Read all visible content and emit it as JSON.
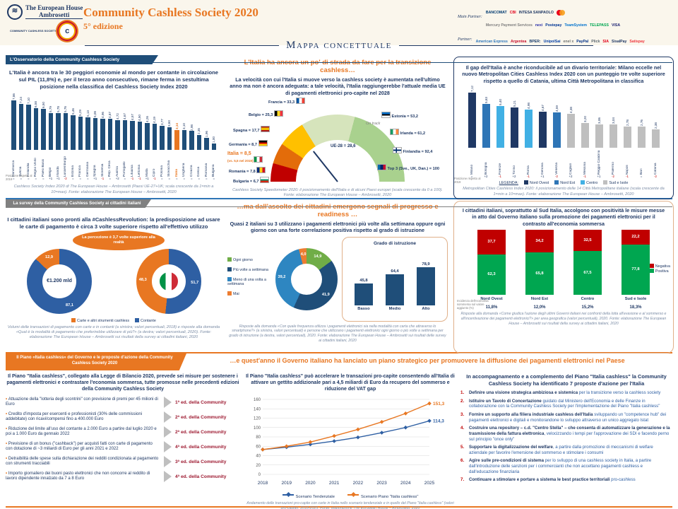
{
  "header": {
    "org_line1": "The European House",
    "org_line2": "Ambrosetti",
    "ccs_logo_text": "COMMUNITY CASHLESS SOCIETY",
    "title": "Community Cashless Society 2020",
    "edition": "5° edizione",
    "main_partner_label": "Main Partner:",
    "partner_label": "Partner:",
    "main_partners": [
      {
        "name": "BANCOMAT",
        "color": "#003A70"
      },
      {
        "name": "CBI",
        "color": "#E2001A"
      },
      {
        "name": "INTESA SANPAOLO",
        "color": "#1F3864"
      },
      {
        "name": "Mastercard",
        "color": "#1F3864"
      },
      {
        "name": "Mercury Payment Services",
        "color": "#7F7F7F"
      },
      {
        "name": "nexi",
        "color": "#2D32AA"
      },
      {
        "name": "Postepay",
        "color": "#003595"
      },
      {
        "name": "TeamSystem",
        "color": "#0072CE"
      },
      {
        "name": "TELEPASS",
        "color": "#00A651"
      },
      {
        "name": "VISA",
        "color": "#1A1F71"
      }
    ],
    "partners": [
      {
        "name": "American Express",
        "color": "#2E77BC"
      },
      {
        "name": "Argentea",
        "color": "#C8102E"
      },
      {
        "name": "BPER:",
        "color": "#1A3E6E"
      },
      {
        "name": "UnipolSai",
        "color": "#003DA5"
      },
      {
        "name": "enel x",
        "color": "#6F7271"
      },
      {
        "name": "PayPal",
        "color": "#003087"
      },
      {
        "name": "Plick",
        "color": "#5B6770"
      },
      {
        "name": "SIA",
        "color": "#E2001A"
      },
      {
        "name": "SisalPay",
        "color": "#1F3864"
      },
      {
        "name": "Satispay",
        "color": "#EF373E"
      }
    ]
  },
  "map_title": "Mappa concettuale",
  "tabs": {
    "t1": "L'Osservatorio della Community Cashless Society",
    "t2": "La survey della Community Cashless Society ai cittadini italiani",
    "t3": "Il Piano «Italia cashless» del Governo e le proposte d'azione della Community Cashless Society 2020"
  },
  "panels": {
    "p11": {
      "headline": "L'Italia è ancora tra le 30 peggiori economie al mondo per contante in circolazione sul PIL (11,8%) e, per il terzo anno consecutivo, rimane ferma in sestultima posizione nella classifica del Cashless Society Index 2020",
      "caption": "Cashless Society Index 2020 di The European House – Ambrosetti (Paesi UE-27+UK; scala crescente da 1=min a 10=max). Fonte: elaborazione The European House – Ambrosetti, 2020"
    },
    "p12": {
      "title": "L'Italia ha ancora un po' di strada da fare per la transizione cashless…",
      "headline": "La velocità con cui l'Italia si muove verso la cashless society è aumentata nell'ultimo anno ma non è ancora adeguata: a tale velocità, l'Italia raggiungerebbe l'attuale media UE di pagamenti elettronici pro-capite nel 2028",
      "caption": "Cashless Society Speedometer 2020: il posizionamento dell'Italia e di alcuni Paesi europei (scala crescente da 0 a 100). Fonte: elaborazione The European House – Ambrosetti, 2020"
    },
    "p13": {
      "headline": "Il gap dell'Italia è anche riconducibile ad un divario territoriale: Milano eccelle nel nuovo Metropolitan Cities Cashless Index 2020 con un punteggio tre volte superiore rispetto a quello di Catania, ultima Città Metropolitana in classifica",
      "caption": "Metropolitan Cities Cashless Index 2020: il posizionamento delle 14 Città Metropolitane italiane (scala crescente da 1=min a 10=max). Fonte: elaborazione The European House – Ambrosetti, 2020"
    },
    "p21": {
      "headline": "I cittadini italiani sono pronti alla #CashlessRevolution: la predisposizione ad usare le carte di pagamento è circa 3 volte superiore rispetto all'effettivo utilizzo",
      "caption": "Volumi delle transazioni di pagamento con carte e in contanti (a sinistra; valori percentuali, 2018) e risposte alla domanda «Qual è la modalità di pagamento che preferirebbe utilizzare di più?» (a destra; valori percentuali, 2020). Fonte: elaborazione The European House – Ambrosetti sui risultati della survey ai cittadini italiani, 2020"
    },
    "p22": {
      "title": "…ma dall'ascolto dei cittadini emergono segnali di progresso e readiness …",
      "headline": "Quasi 2 italiani su 3 utilizzano i pagamenti elettronici più volte alla settimana oppure ogni giorno con una forte correlazione positiva rispetto al grado di istruzione",
      "caption": "Risposte alla domanda «Con quale frequenza utilizza i pagamenti elettronici sia nella modalità con carta che attraverso lo smartphone?» (a sinistra, valori percentuali) e persone che utilizzano i pagamenti elettronici ogni giorno o più volte a settimana per grado di istruzione (a destra, valori percentuali), 2020. Fonte: elaborazione The European House – Ambrosetti sui risultati delle survey ai cittadini italiani, 2020"
    },
    "p23": {
      "headline": "I cittadini italiani, soprattutto al Sud Italia, accolgono con positività le misure messe in atto dal Governo italiano sulla promozione dei pagamenti elettronici per il contrasto all'economia sommersa",
      "caption": "Risposte alla domanda «Come giudica l'azione degli ultimi Governi italiani nei confronti della lotta all'evasione e al sommerso e all'incentivazione dei pagamenti elettronici?» per area geografica (valori percentuali), 2020. Fonte: elaborazione The European House – Ambrosetti sui risultati della survey ai cittadini italiani, 2020"
    },
    "p3": {
      "title": "…e quest'anno il Governo italiano ha lanciato un piano strategico per promuovere la diffusione dei pagamenti elettronici nel Paese",
      "left_headline": "Il Piano \"Italia cashless\", collegato alla Legge di Bilancio 2020, prevede sei misure per sostenere i pagamenti elettronici e contrastare l'economia sommersa, tutte promosse nelle precedenti edizioni della Community Cashless Society",
      "measures": [
        {
          "text": "Attuazione della \"lotteria degli scontrini\" con previsione di premi per 45 milioni di Euro",
          "edition": "1ª ed. della Community"
        },
        {
          "text": "Credito d'imposta per esercenti e professionisti (30% delle commissioni addebitate) con ricavi/compensi fino a 400.000 Euro",
          "edition": "2ª ed. della Community"
        },
        {
          "text": "Riduzione del limite all'uso del contante a 2.000 Euro a partire dal luglio 2020 e poi a 1.000 Euro da gennaio 2022",
          "edition": "2ª ed. della Community"
        },
        {
          "text": "Previsione di un bonus (\"cashback\") per acquisti fatti con carte di pagamento con dotazione di ~3 miliardi di Euro per gli anni 2021 e 2022",
          "edition": "4ª ed. della Community"
        },
        {
          "text": "Detraibilità delle spese sulla dichiarazione dei redditi condizionata al pagamento con strumenti tracciabili",
          "edition": "3ª ed. della Community"
        },
        {
          "text": "Importo giornaliero dei buoni pasto elettronici che non concorre al reddito di lavoro dipendente innalzato da 7 a 8 Euro",
          "edition": "4ª ed. della Community"
        }
      ],
      "mid_headline": "Il Piano \"Italia cashless\" può accelerare le transazioni pro-capite consentendo all'Italia di attivare un gettito addizionale pari a 4,5 miliardi di Euro da recupero del sommerso e riduzione del VAT gap",
      "mid_caption": "Andamento delle transazioni pro-capite con carte in Italia nello scenario tendenziale e in quello del Piano \"Italia cashless\" (valori pro-capite), 2018-2025. Fonte: elaborazione The European House – Ambrosetti, 2020",
      "right_heading": "In accompagnamento e a complemento del Piano \"Italia cashless\" la Community Cashless Society ha identificato 7 proposte d'azione per l'Italia",
      "proposals": [
        {
          "n": "1.",
          "lead": "Definire una visione strategica ambiziosa e sistemica",
          "rest": " per la transizione verso la cashless society"
        },
        {
          "n": "2.",
          "lead": "Istituire un Tavolo di Concertazione",
          "rest": " guidato dal Ministero dell'Economia e delle Finanze in collaborazione con la Community Cashless Society per l'implementazione del Piano \"Italia cashless\""
        },
        {
          "n": "3.",
          "lead": "Fornire un supporto alla filiera industriale cashless dell'Italia",
          "rest": " sviluppando un \"competence hub\" dei pagamenti elettronici e digitali e monitorandone lo sviluppo attraverso un unico aggregato Istat"
        },
        {
          "n": "4.",
          "lead": "Costruire una repository – c.d. \"Centro Stella\" – che consenta di automatizzare la generazione e la trasmissione della fattura elettronica",
          "rest": ", velocizzando i tempi per l'approvazione dei SDI e facendo perno sul principio \"once only\""
        },
        {
          "n": "5.",
          "lead": "Supportare la digitalizzazione del welfare",
          "rest": ", a partire dalla promozione di meccanismi di welfare aziendale per favorire l'emersione del sommerso e stimolare i consumi"
        },
        {
          "n": "6.",
          "lead": "Agire sulle pre-condizioni di sistema",
          "rest": " per lo sviluppo di una cashless society in Italia, a partire dall'introduzione delle sanzioni per i commercianti che non accettano pagamenti cashless e dall'educazione finanziaria"
        },
        {
          "n": "7.",
          "lead": "Continuare a stimolare e portare a sistema le best practice territoriali",
          "rest": " pro-cashless"
        }
      ]
    }
  },
  "chart_data": [
    {
      "id": "csi",
      "type": "bar",
      "title": "Cashless Society Index 2020",
      "categories": [
        "Danimarca",
        "Svezia",
        "Finlandia",
        "Regno Unito",
        "Paesi Bassi",
        "Belgio",
        "Irlanda",
        "Lussemburgo",
        "Estonia",
        "Francia",
        "Germania",
        "Spagna",
        "Slovenia",
        "Rep. Ceca",
        "Austria",
        "Portogallo",
        "Lituania",
        "Lettonia",
        "Malta",
        "Cipro",
        "Polonia",
        "Slovacchia",
        "Italia",
        "Ungheria",
        "Croazia",
        "Grecia",
        "Romania",
        "Bulgaria"
      ],
      "values": [
        7.86,
        7.24,
        7.1,
        6.58,
        6.5,
        5.79,
        5.78,
        5.76,
        5.46,
        5.29,
        5.13,
        5.08,
        4.96,
        4.87,
        4.72,
        4.67,
        4.57,
        4.5,
        4.26,
        4.19,
        3.77,
        3.6,
        3.14,
        3.1,
        2.98,
        2.35,
        1.96,
        1.0
      ],
      "highlight": "Italia",
      "deltas": [
        "=",
        "=",
        "=",
        "=",
        "=",
        "+1",
        "+1",
        "-2",
        "=",
        "=",
        "=",
        "+1",
        "-1",
        "=",
        "+2",
        "=",
        "-1",
        "-1",
        "+1",
        "-1",
        "=",
        "=",
        "=",
        "=",
        "=",
        "=",
        "=",
        "="
      ],
      "delta_label": "Posizione rispetto al 2019",
      "ylim": [
        0,
        8
      ]
    },
    {
      "id": "speedometer",
      "type": "gauge",
      "ue28_label": "UE-28 = 28,6",
      "ue28_value": 28.6,
      "on_track": "On track",
      "italia_note": "(vs. 5,5 nel 2019)",
      "left_items": [
        {
          "name": "Francia",
          "value": "33,3",
          "flag": "fr"
        },
        {
          "name": "Belgio",
          "value": "25,3",
          "flag": "be"
        },
        {
          "name": "Spagna",
          "value": "17,7",
          "flag": "es"
        },
        {
          "name": "Germania",
          "value": "8,7",
          "flag": "de"
        },
        {
          "name": "Italia",
          "value": "8,5",
          "flag": "it"
        },
        {
          "name": "Romania",
          "value": "7,8",
          "flag": "ro"
        },
        {
          "name": "Bulgaria",
          "value": "6,7",
          "flag": "bg"
        }
      ],
      "right_items": [
        {
          "name": "Estonia",
          "value": "53,2",
          "flag": "ee"
        },
        {
          "name": "Irlanda",
          "value": "61,2",
          "flag": "ie"
        },
        {
          "name": "Finlandia",
          "value": "92,4",
          "flag": "fi"
        },
        {
          "name": "Top 3 (Sve., UK, Dan.)",
          "value": "100",
          "flag": "t3"
        }
      ],
      "scale": [
        0,
        100
      ]
    },
    {
      "id": "cities",
      "type": "bar",
      "title": "Metropolitan Cities Cashless Index 2020",
      "categories": [
        "Milano",
        "Bologna",
        "Firenze",
        "Torino",
        "Roma",
        "Genova",
        "Venezia",
        "Cagliari",
        "Messina",
        "Reggio Calabria",
        "Palermo",
        "Napoli",
        "Bari",
        "Catania"
      ],
      "values": [
        7.12,
        5.63,
        5.4,
        5.21,
        4.98,
        4.67,
        4.59,
        4.38,
        3.2,
        3.06,
        3.04,
        2.78,
        2.76,
        2.38
      ],
      "groups": [
        "Nord Ovest",
        "Nord Est",
        "Centro",
        "Nord Ovest",
        "Centro",
        "Nord Ovest",
        "Nord Est",
        "Sud e Isole",
        "Sud e Isole",
        "Sud e Isole",
        "Sud e Isole",
        "Sud e Isole",
        "Sud e Isole",
        "Sud e Isole"
      ],
      "group_colors": {
        "Nord Ovest": "#1F3864",
        "Nord Est": "#2E75B6",
        "Centro": "#41B0E4",
        "Sud e Isole": "#BFBFBF"
      },
      "deltas": [
        "=",
        "+2",
        "-1",
        "+2",
        "-1",
        "+1",
        "-2",
        "+2",
        "-1",
        "+1",
        "-2",
        "-1",
        "=",
        "-2"
      ],
      "delta_label": "Posizione rispetto al 2019",
      "legend_label": "LEGENDA:",
      "legend": [
        "Nord Ovest",
        "Nord Est",
        "Centro",
        "Sud e Isole"
      ],
      "ylim": [
        0,
        8
      ]
    },
    {
      "id": "transactions_donuts",
      "type": "pie",
      "bubble": "La percezione è 3,7 volte superiore alla realtà",
      "left": {
        "center": "€1.200 mld",
        "segments": [
          {
            "label": "Contante",
            "value": 87.1,
            "color": "#2E5FA3"
          },
          {
            "label": "Carte e altri strumenti cashless",
            "value": 12.9,
            "color": "#E87722"
          }
        ]
      },
      "right": {
        "segments": [
          {
            "label": "Contante",
            "value": 51.7,
            "color": "#2E5FA3"
          },
          {
            "label": "Carte e altri strumenti cashless",
            "value": 48.3,
            "color": "#E87722"
          }
        ]
      },
      "legend": [
        {
          "label": "Carte e altri strumenti cashless",
          "color": "#E87722"
        },
        {
          "label": "Contante",
          "color": "#2E5FA3"
        }
      ]
    },
    {
      "id": "frequency_donut",
      "type": "pie",
      "segments": [
        {
          "label": "Ogni giorno",
          "value": 14.9,
          "color": "#70AD47"
        },
        {
          "label": "Più volte a settimana",
          "value": 41.9,
          "color": "#1F4E79"
        },
        {
          "label": "Meno di una volta a settimana",
          "value": 39.2,
          "color": "#2E86C1"
        },
        {
          "label": "Mai",
          "value": 4.0,
          "color": "#ED7D31"
        }
      ],
      "legend_order": [
        "Ogni giorno",
        "Più volte a settimana",
        "Meno di una volta a settimana",
        "Mai"
      ]
    },
    {
      "id": "education",
      "type": "bar",
      "title": "Grado di istruzione",
      "categories": [
        "Basso",
        "Medio",
        "Alto"
      ],
      "values": [
        45.8,
        64.4,
        78.9
      ],
      "ylim": [
        0,
        100
      ],
      "color": "#1F4E79"
    },
    {
      "id": "government",
      "type": "bar",
      "stacked": true,
      "categories": [
        "Nord Ovest",
        "Nord Est",
        "Centro",
        "Sud e Isole"
      ],
      "series": [
        {
          "name": "Negativa",
          "color": "#C00000",
          "values": [
            37.7,
            34.2,
            32.5,
            22.2
          ]
        },
        {
          "name": "Positiva",
          "color": "#00A650",
          "values": [
            62.3,
            65.8,
            67.5,
            77.8
          ]
        }
      ],
      "sommerso_label": "Incidenza dell'economia sommersa sul valore aggiunto (%)",
      "sommerso": [
        "11,8%",
        "12,0%",
        "15,2%",
        "18,3%"
      ],
      "ylim": [
        0,
        100
      ]
    },
    {
      "id": "scenario_line",
      "type": "line",
      "x": [
        2018,
        2019,
        2020,
        2021,
        2022,
        2023,
        2024,
        2025
      ],
      "series": [
        {
          "name": "Scenario Tendenziale",
          "color": "#2E5FA3",
          "values": [
            53,
            58,
            64,
            71,
            79,
            89,
            100,
            114.3
          ],
          "end_label": "114,3"
        },
        {
          "name": "Scenario Piano \"Italia cashless\"",
          "color": "#E87722",
          "values": [
            53,
            60,
            69,
            82,
            96,
            112,
            130,
            151.3
          ],
          "end_label": "151,3"
        }
      ],
      "ylim": [
        0,
        160
      ],
      "ytick_step": 20,
      "grid": true,
      "legend_position": "bottom"
    }
  ]
}
